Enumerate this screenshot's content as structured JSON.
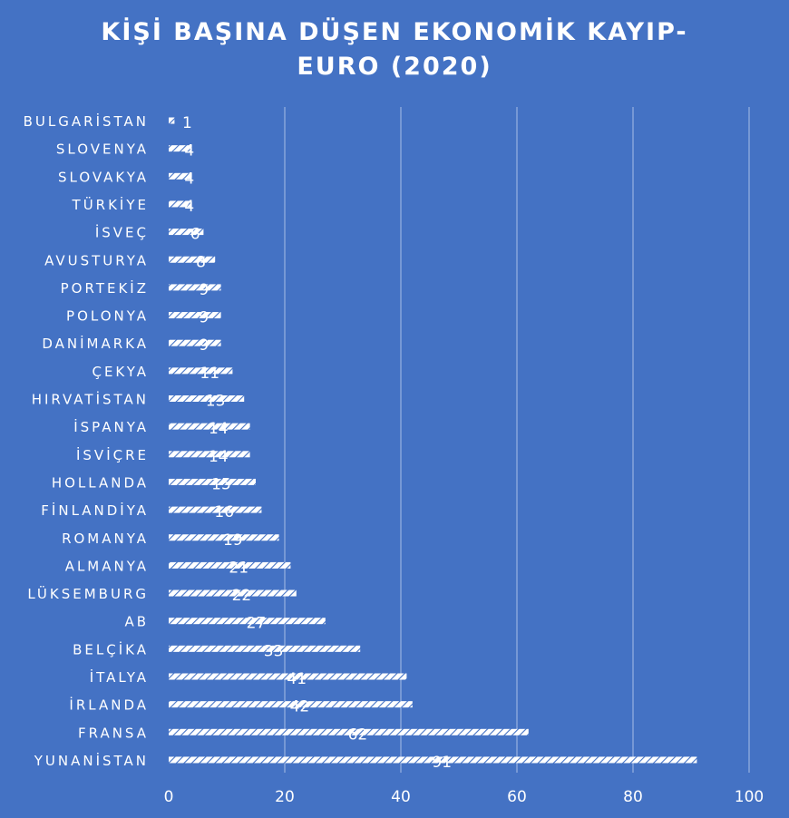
{
  "chart_data": {
    "type": "bar",
    "orientation": "horizontal",
    "title_line1": "KİŞİ BAŞINA DÜŞEN EKONOMİK KAYIP-",
    "title_line2": "EURO (2020)",
    "categories": [
      "BULGARİSTAN",
      "SLOVENYA",
      "SLOVAKYA",
      "TÜRKİYE",
      "İSVEÇ",
      "AVUSTURYA",
      "PORTEKİZ",
      "POLONYA",
      "DANİMARKA",
      "ÇEKYA",
      "HIRVATİSTAN",
      "İSPANYA",
      "İSVİÇRE",
      "HOLLANDA",
      "FİNLANDİYA",
      "ROMANYA",
      "ALMANYA",
      "LÜKSEMBURG",
      "AB",
      "BELÇİKA",
      "İTALYA",
      "İRLANDA",
      "FRANSA",
      "YUNANİSTAN"
    ],
    "values": [
      1,
      4,
      4,
      4,
      6,
      8,
      9,
      9,
      9,
      11,
      13,
      14,
      14,
      15,
      16,
      19,
      21,
      22,
      27,
      33,
      41,
      42,
      62,
      91
    ],
    "xlim": [
      0,
      100
    ],
    "xticks": [
      0,
      20,
      40,
      60,
      80,
      100
    ],
    "grid": true,
    "data_labels": true,
    "colors": {
      "background": "#4472C4",
      "bar": "#ffffff",
      "text": "#ffffff",
      "grid": "#a9bfe6"
    }
  }
}
